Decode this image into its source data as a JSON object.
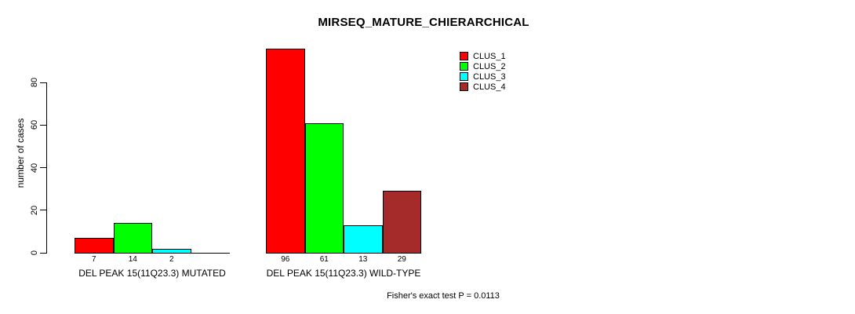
{
  "chart_data": {
    "type": "bar",
    "title": "MIRSEQ_MATURE_CHIERARCHICAL",
    "ylabel": "number of cases",
    "ylim": [
      0,
      96
    ],
    "yticks": [
      0,
      20,
      40,
      60,
      80
    ],
    "grid": false,
    "legend_position": "top-right",
    "series": [
      {
        "name": "CLUS_1",
        "color": "#FF0000"
      },
      {
        "name": "CLUS_2",
        "color": "#00FF00"
      },
      {
        "name": "CLUS_3",
        "color": "#00FFFF"
      },
      {
        "name": "CLUS_4",
        "color": "#A52A2A"
      }
    ],
    "groups": [
      {
        "label": "DEL PEAK 15(11Q23.3) MUTATED",
        "values": [
          7,
          14,
          2,
          0
        ]
      },
      {
        "label": "DEL PEAK 15(11Q23.3) WILD-TYPE",
        "values": [
          96,
          61,
          13,
          29
        ]
      }
    ],
    "annotation": "Fisher's exact test P = 0.0113"
  }
}
